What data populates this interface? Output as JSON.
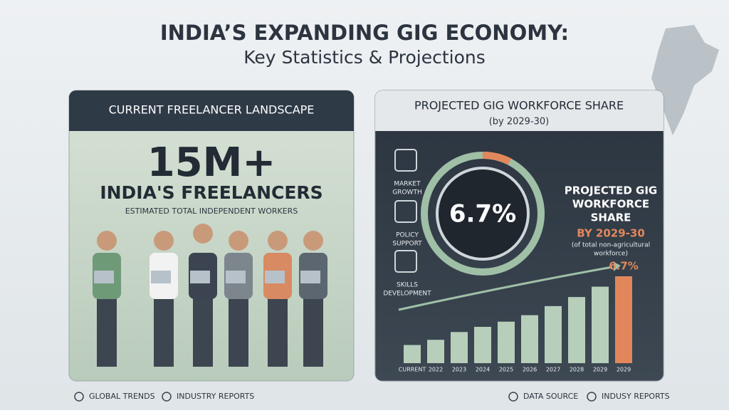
{
  "header": {
    "title": "INDIA’S EXPANDING GIG ECONOMY:",
    "subtitle": "Key Statistics & Projections"
  },
  "left_panel": {
    "heading": "CURRENT FREELANCER LANDSCAPE",
    "big_number": "15M+",
    "label": "INDIA'S FREELANCERS",
    "caption": "ESTIMATED TOTAL INDEPENDENT WORKERS"
  },
  "right_panel": {
    "heading": "PROJECTED GIG WORKFORCE SHARE",
    "subheading": "(by 2029-30)",
    "drivers": [
      [
        "MARKET",
        "GROWTH"
      ],
      [
        "POLICY",
        "SUPPORT"
      ],
      [
        "SKILLS",
        "DEVELOPMENT"
      ]
    ],
    "gauge_label": "6.7%",
    "share_title": [
      "PROJECTED GIG",
      "WORKFORCE",
      "SHARE"
    ],
    "share_year": "BY 2029-30",
    "share_note": [
      "(of total non-agricultural",
      "workforce)"
    ],
    "chart": {
      "type": "bar",
      "categories": [
        "CURRENT",
        "2022",
        "2023",
        "2024",
        "2025",
        "2026",
        "2027",
        "2028",
        "2029",
        "2029"
      ],
      "values": [
        1.4,
        1.8,
        2.4,
        2.8,
        3.2,
        3.7,
        4.4,
        5.1,
        5.9,
        6.7
      ],
      "colors": [
        "#b7cfba",
        "#b7cfba",
        "#b7cfba",
        "#b7cfba",
        "#b7cfba",
        "#b7cfba",
        "#b7cfba",
        "#b7cfba",
        "#b7cfba",
        "#e2875c"
      ],
      "annotation": "6.7%"
    }
  },
  "footer": {
    "left": [
      "GLOBAL TRENDS",
      "INDUSTRY REPORTS"
    ],
    "right": [
      "DATA SOURCE",
      "INDUSY REPORTS"
    ]
  }
}
